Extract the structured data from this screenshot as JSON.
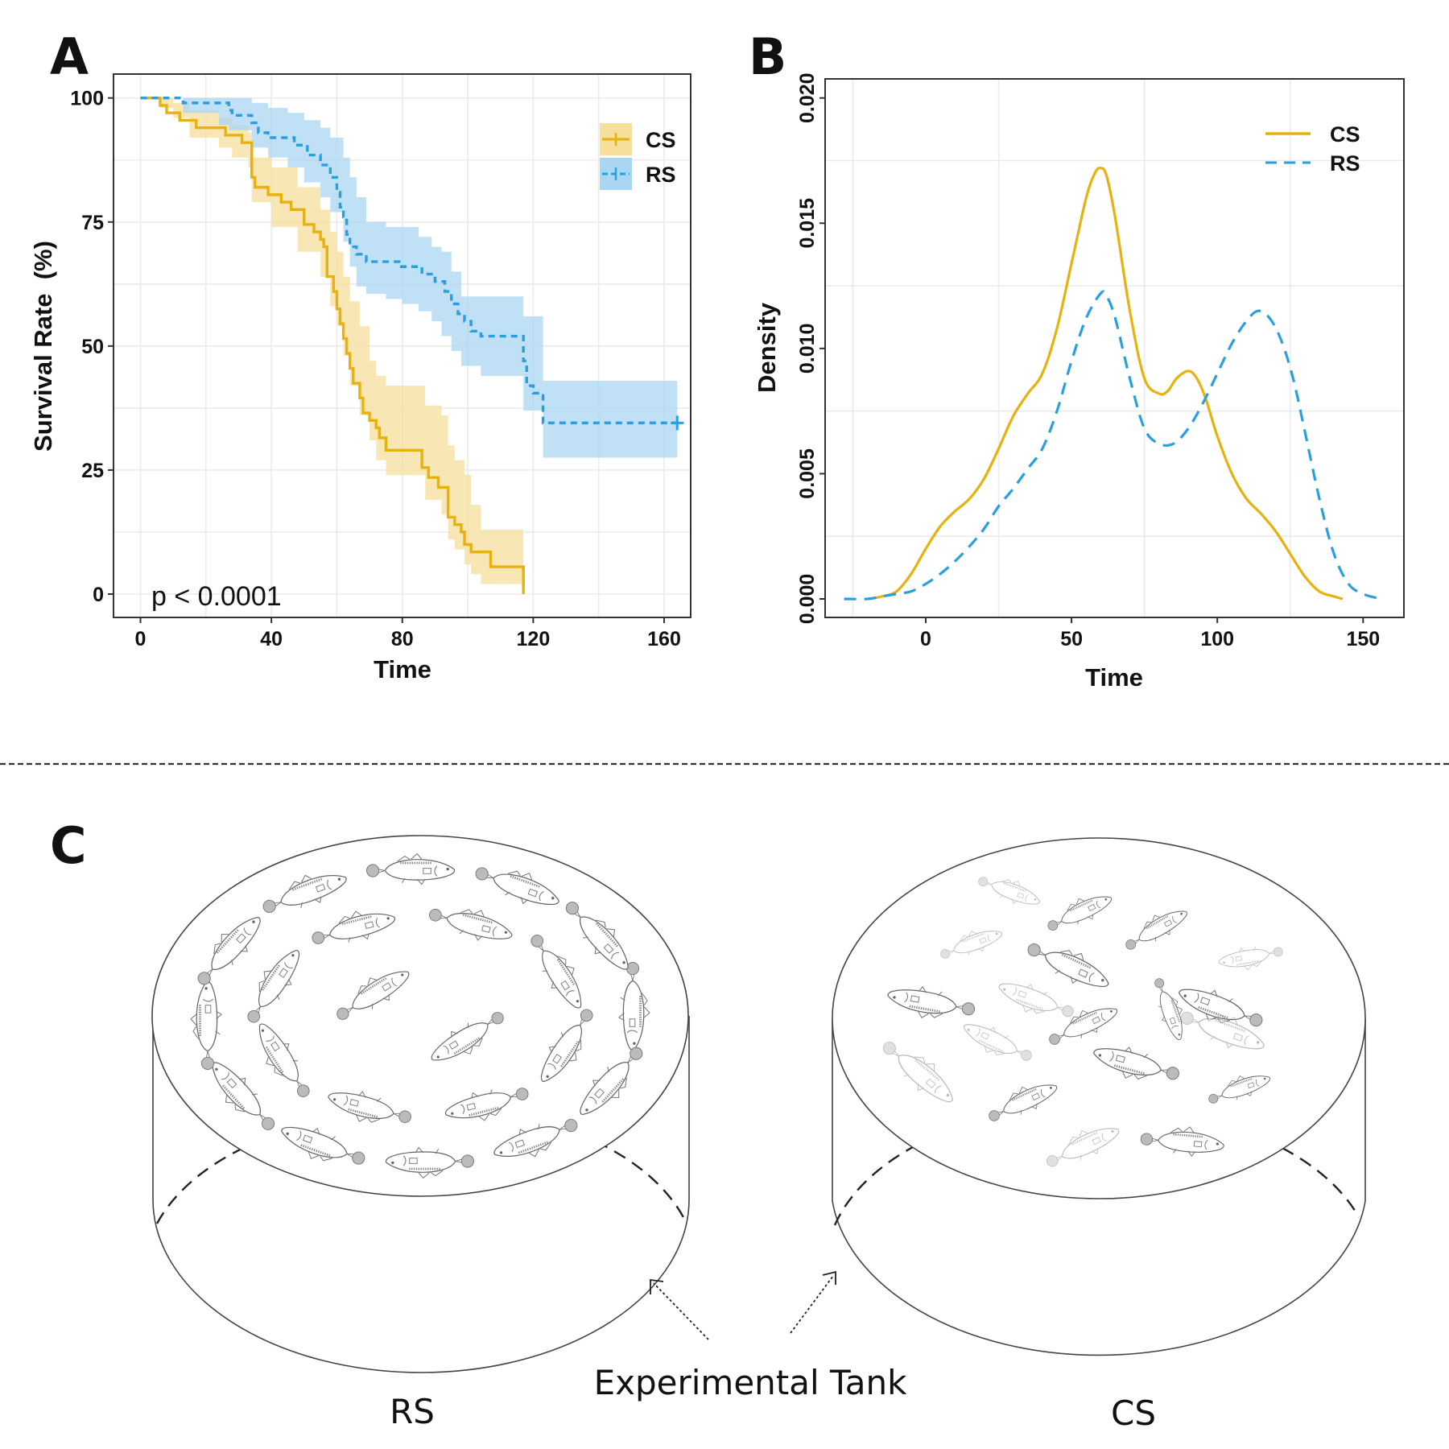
{
  "figure": {
    "panel_labels": [
      "A",
      "B",
      "C"
    ]
  },
  "colors": {
    "CS": "#E7B10F",
    "RS": "#2A9FDF",
    "CS_ci": "#F5DF9B",
    "RS_ci": "#A9D6F2",
    "grid": "#EBEBEB",
    "frame": "#333333"
  },
  "chart_data": [
    {
      "panel": "A",
      "type": "line",
      "subtype": "kaplan-meier step with confidence bands",
      "title": "",
      "xlabel": "Time",
      "ylabel": "Survival Rate  (%)",
      "xlim": [
        -5,
        168
      ],
      "ylim": [
        -5,
        105
      ],
      "x_ticks": [
        0,
        40,
        80,
        120,
        160
      ],
      "x_tick_labels": [
        "0",
        "40",
        "80",
        "120",
        "160"
      ],
      "y_ticks": [
        0,
        25,
        50,
        75,
        100
      ],
      "y_tick_labels": [
        "0",
        "25",
        "50",
        "75",
        "100"
      ],
      "grid": true,
      "legend": {
        "position": "top-right",
        "entries": [
          "CS",
          "RS"
        ]
      },
      "annotation": "p < 0.0001",
      "series": [
        {
          "name": "CS",
          "style": "solid",
          "steps": [
            [
              0,
              100
            ],
            [
              6,
              100
            ],
            [
              6,
              98.5
            ],
            [
              8,
              97
            ],
            [
              12,
              95.5
            ],
            [
              17,
              94
            ],
            [
              24,
              94
            ],
            [
              26,
              92.5
            ],
            [
              31,
              91
            ],
            [
              33,
              91
            ],
            [
              34,
              89.5
            ],
            [
              34,
              84
            ],
            [
              35,
              82
            ],
            [
              39,
              80.5
            ],
            [
              43,
              79
            ],
            [
              46,
              77.5
            ],
            [
              50,
              74.5
            ],
            [
              53,
              73
            ],
            [
              55,
              71.5
            ],
            [
              56,
              70
            ],
            [
              57,
              64
            ],
            [
              59,
              61
            ],
            [
              60,
              57.5
            ],
            [
              61,
              54.5
            ],
            [
              62,
              51.5
            ],
            [
              63,
              48.5
            ],
            [
              64,
              45.5
            ],
            [
              65,
              42.5
            ],
            [
              67,
              39.5
            ],
            [
              68,
              36.5
            ],
            [
              70,
              35
            ],
            [
              72,
              33.5
            ],
            [
              73,
              31.5
            ],
            [
              75,
              29
            ],
            [
              85,
              29
            ],
            [
              86,
              25.5
            ],
            [
              88,
              23.5
            ],
            [
              90,
              23.5
            ],
            [
              91,
              21.5
            ],
            [
              94,
              21.5
            ],
            [
              94,
              15.5
            ],
            [
              96,
              14
            ],
            [
              98,
              12.5
            ],
            [
              99,
              10
            ],
            [
              101,
              8.5
            ],
            [
              107,
              8.5
            ],
            [
              107,
              5.5
            ],
            [
              117,
              5.5
            ],
            [
              117,
              0
            ]
          ],
          "ci_upper": [
            [
              0,
              100
            ],
            [
              6,
              100
            ],
            [
              10,
              99
            ],
            [
              15,
              97.5
            ],
            [
              24,
              96
            ],
            [
              28,
              94.5
            ],
            [
              33,
              93
            ],
            [
              34,
              91.5
            ],
            [
              34,
              88
            ],
            [
              40,
              86
            ],
            [
              48,
              82
            ],
            [
              55,
              77.5
            ],
            [
              58,
              73
            ],
            [
              60,
              69
            ],
            [
              62,
              64
            ],
            [
              64,
              59
            ],
            [
              67,
              54
            ],
            [
              70,
              47
            ],
            [
              72,
              44
            ],
            [
              75,
              42
            ],
            [
              85,
              42
            ],
            [
              87,
              38
            ],
            [
              92,
              36
            ],
            [
              94,
              30
            ],
            [
              96,
              27
            ],
            [
              99,
              24
            ],
            [
              101,
              18
            ],
            [
              104,
              13
            ],
            [
              107,
              13
            ],
            [
              117,
              10
            ],
            [
              117,
              10
            ]
          ],
          "ci_lower": [
            [
              0,
              100
            ],
            [
              6,
              98
            ],
            [
              10,
              96
            ],
            [
              15,
              92
            ],
            [
              24,
              90
            ],
            [
              28,
              88
            ],
            [
              33,
              86
            ],
            [
              34,
              82
            ],
            [
              34,
              79
            ],
            [
              40,
              74
            ],
            [
              48,
              69
            ],
            [
              55,
              64
            ],
            [
              58,
              58
            ],
            [
              60,
              54
            ],
            [
              62,
              48
            ],
            [
              64,
              42
            ],
            [
              67,
              36
            ],
            [
              70,
              31
            ],
            [
              72,
              27
            ],
            [
              75,
              24
            ],
            [
              85,
              24
            ],
            [
              87,
              19
            ],
            [
              92,
              16
            ],
            [
              94,
              11
            ],
            [
              96,
              9
            ],
            [
              99,
              6
            ],
            [
              101,
              4
            ],
            [
              104,
              2
            ],
            [
              107,
              2
            ],
            [
              117,
              2
            ],
            [
              117,
              2
            ]
          ]
        },
        {
          "name": "RS",
          "style": "dashed",
          "censor_mark_at": [
            164,
            34.5
          ],
          "steps": [
            [
              0,
              100
            ],
            [
              13,
              100
            ],
            [
              13,
              99
            ],
            [
              24,
              99
            ],
            [
              27,
              97.5
            ],
            [
              28,
              96.5
            ],
            [
              34,
              95
            ],
            [
              36,
              93
            ],
            [
              39,
              92
            ],
            [
              43,
              92
            ],
            [
              47,
              90.5
            ],
            [
              51,
              88.5
            ],
            [
              55,
              86.5
            ],
            [
              58,
              84
            ],
            [
              60,
              81
            ],
            [
              61,
              78
            ],
            [
              62,
              76
            ],
            [
              63,
              72.5
            ],
            [
              64,
              70
            ],
            [
              66,
              68.5
            ],
            [
              69,
              67
            ],
            [
              75,
              67
            ],
            [
              79,
              66
            ],
            [
              83,
              66
            ],
            [
              86,
              64.5
            ],
            [
              90,
              63
            ],
            [
              93,
              61
            ],
            [
              95,
              58.5
            ],
            [
              97,
              56.5
            ],
            [
              99,
              55
            ],
            [
              101,
              53
            ],
            [
              104,
              52
            ],
            [
              117,
              52
            ],
            [
              117,
              47
            ],
            [
              118,
              42
            ],
            [
              120,
              40.5
            ],
            [
              123,
              40.5
            ],
            [
              123,
              34.5
            ],
            [
              164,
              34.5
            ]
          ],
          "ci_upper": [
            [
              0,
              100
            ],
            [
              13,
              100
            ],
            [
              24,
              100
            ],
            [
              27,
              100
            ],
            [
              34,
              99
            ],
            [
              39,
              98
            ],
            [
              45,
              97
            ],
            [
              50,
              95.5
            ],
            [
              55,
              94
            ],
            [
              58,
              92
            ],
            [
              62,
              88
            ],
            [
              64,
              84
            ],
            [
              66,
              80
            ],
            [
              69,
              75
            ],
            [
              75,
              74
            ],
            [
              80,
              74
            ],
            [
              85,
              72
            ],
            [
              89,
              70
            ],
            [
              92,
              69
            ],
            [
              95,
              65
            ],
            [
              98,
              60
            ],
            [
              104,
              60
            ],
            [
              117,
              60
            ],
            [
              117,
              56
            ],
            [
              123,
              43
            ],
            [
              164,
              43
            ]
          ],
          "ci_lower": [
            [
              0,
              100
            ],
            [
              13,
              97
            ],
            [
              24,
              94.5
            ],
            [
              27,
              93.5
            ],
            [
              34,
              90
            ],
            [
              39,
              88
            ],
            [
              45,
              86
            ],
            [
              50,
              83
            ],
            [
              55,
              80
            ],
            [
              58,
              77
            ],
            [
              62,
              71
            ],
            [
              64,
              66
            ],
            [
              66,
              62
            ],
            [
              69,
              60.5
            ],
            [
              75,
              59.5
            ],
            [
              80,
              58.5
            ],
            [
              85,
              57
            ],
            [
              89,
              55
            ],
            [
              92,
              52
            ],
            [
              95,
              49
            ],
            [
              98,
              46
            ],
            [
              104,
              44
            ],
            [
              117,
              44
            ],
            [
              117,
              37
            ],
            [
              123,
              27.5
            ],
            [
              164,
              27.5
            ]
          ]
        }
      ]
    },
    {
      "panel": "B",
      "type": "line",
      "subtype": "kernel density",
      "title": "",
      "xlabel": "Time",
      "ylabel": "Density",
      "xlim": [
        -33,
        162
      ],
      "ylim": [
        -0.0008,
        0.0208
      ],
      "x_ticks": [
        0,
        50,
        100,
        150
      ],
      "x_tick_labels": [
        "0",
        "50",
        "100",
        "150"
      ],
      "y_ticks": [
        0.0,
        0.005,
        0.01,
        0.015,
        0.02
      ],
      "y_tick_labels": [
        "0.000",
        "0.005",
        "0.010",
        "0.015",
        "0.020"
      ],
      "grid": true,
      "legend": {
        "position": "top-right",
        "entries": [
          "CS",
          "RS"
        ]
      },
      "series": [
        {
          "name": "CS",
          "style": "solid",
          "x": [
            -20,
            -15,
            -10,
            -5,
            0,
            5,
            10,
            15,
            20,
            25,
            30,
            35,
            40,
            45,
            50,
            55,
            58,
            60,
            62,
            65,
            70,
            75,
            80,
            83,
            86,
            90,
            93,
            96,
            100,
            105,
            110,
            115,
            120,
            125,
            130,
            135,
            140,
            143
          ],
          "y": [
            0.0,
            0.0001,
            0.0003,
            0.001,
            0.002,
            0.0029,
            0.0035,
            0.004,
            0.0048,
            0.006,
            0.0073,
            0.0082,
            0.009,
            0.0108,
            0.0134,
            0.016,
            0.017,
            0.0172,
            0.0169,
            0.0152,
            0.0115,
            0.0088,
            0.0082,
            0.0083,
            0.0088,
            0.0091,
            0.0088,
            0.008,
            0.0065,
            0.005,
            0.004,
            0.0034,
            0.0027,
            0.0018,
            0.0009,
            0.0003,
            0.0001,
            0.0
          ]
        },
        {
          "name": "RS",
          "style": "dashed",
          "x": [
            -28,
            -20,
            -15,
            -10,
            -5,
            0,
            5,
            10,
            15,
            20,
            25,
            30,
            35,
            40,
            45,
            50,
            55,
            60,
            62,
            65,
            70,
            75,
            80,
            85,
            90,
            95,
            100,
            105,
            110,
            114,
            118,
            122,
            126,
            130,
            135,
            140,
            145,
            150,
            156
          ],
          "y": [
            0.0,
            0.0,
            0.0001,
            0.0002,
            0.0003,
            0.0006,
            0.001,
            0.0015,
            0.0021,
            0.0028,
            0.0037,
            0.0044,
            0.0052,
            0.006,
            0.0075,
            0.0095,
            0.0112,
            0.0122,
            0.0121,
            0.0112,
            0.0088,
            0.0068,
            0.0062,
            0.0062,
            0.0068,
            0.0078,
            0.009,
            0.0102,
            0.0111,
            0.0115,
            0.0112,
            0.0103,
            0.0088,
            0.0067,
            0.004,
            0.0018,
            0.0006,
            0.0002,
            0.0
          ]
        }
      ]
    }
  ],
  "panel_c": {
    "label": "C",
    "tanks": [
      {
        "name": "RS",
        "caption": "RS",
        "arrangement": "fish swimming in concentric circles (schooling)"
      },
      {
        "name": "CS",
        "caption": "CS",
        "arrangement": "fish oriented randomly (scattered)"
      }
    ],
    "center_caption": "Experimental Tank"
  }
}
